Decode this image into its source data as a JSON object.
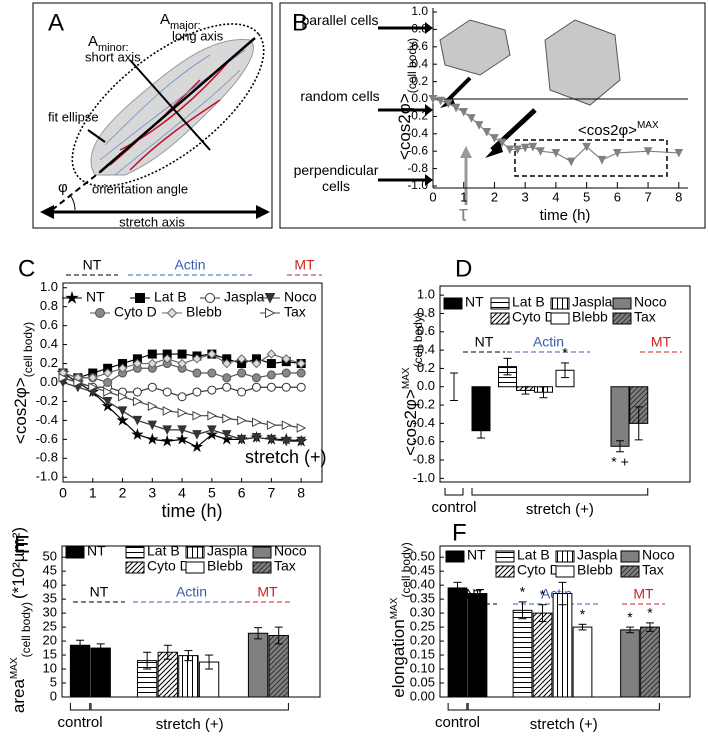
{
  "diagram": {
    "panel": "A",
    "major_axis": {
      "symbol": "A",
      "subscript": "major:",
      "text": "long axis"
    },
    "minor_axis": {
      "symbol": "A",
      "subscript": "minor:",
      "text": "short axis"
    },
    "ellipse_label": "fit ellipse",
    "angle_symbol": "φ",
    "angle_label": "orientation angle",
    "stretch_label": "stretch axis"
  },
  "chart_data": [
    {
      "panel": "B",
      "type": "line",
      "ylabel": "<cos2φ>",
      "ylabel_sub": "(cell body)",
      "xlabel": "time (h)",
      "x": [
        0,
        0.25,
        0.5,
        0.75,
        1,
        1.25,
        1.5,
        1.75,
        2,
        2.25,
        2.5,
        2.75,
        3,
        3.25,
        3.5,
        4,
        4.5,
        5,
        5.5,
        6,
        7,
        8
      ],
      "series": [
        {
          "color": "#808080",
          "marker": "triangle-down",
          "marker_fill": "#808080",
          "values": [
            0,
            -0.02,
            -0.05,
            -0.1,
            -0.15,
            -0.22,
            -0.3,
            -0.38,
            -0.45,
            -0.5,
            -0.58,
            -0.58,
            -0.56,
            -0.55,
            -0.6,
            -0.62,
            -0.72,
            -0.55,
            -0.7,
            -0.62,
            -0.6,
            -0.62
          ]
        }
      ],
      "xlim": [
        0,
        8.3
      ],
      "xticks": [
        0,
        1,
        2,
        3,
        4,
        5,
        6,
        7,
        8
      ],
      "ylim": [
        -1,
        1
      ],
      "yticks": [
        {
          "value": 1,
          "label": "1.0"
        },
        0.8,
        0.6,
        0.4,
        0.2,
        {
          "value": 0,
          "label": "0.0"
        },
        -0.2,
        -0.4,
        -0.6,
        -0.8,
        {
          "value": -1,
          "label": "-1.0"
        }
      ],
      "annotations": [
        "parallel cells",
        "random cells",
        "perpendicular cells"
      ],
      "max_label": {
        "text": "<cos2φ>",
        "sup": "MAX"
      },
      "tau_label": "τ"
    },
    {
      "panel": "C",
      "type": "line",
      "ylabel": "<cos2φ>",
      "ylabel_sub": "(cell body)",
      "xlabel": "time (h)",
      "x": [
        0,
        0.5,
        1,
        1.5,
        2,
        2.5,
        3,
        3.5,
        4,
        4.5,
        5,
        5.5,
        6,
        6.5,
        7,
        7.5,
        8
      ],
      "series": [
        {
          "name": "NT",
          "color": "#000000",
          "marker": "star",
          "marker_fill": "#000000",
          "values": [
            0.1,
            0.0,
            -0.1,
            -0.25,
            -0.4,
            -0.55,
            -0.6,
            -0.62,
            -0.6,
            -0.68,
            -0.55,
            -0.6,
            -0.6,
            -0.58,
            -0.6,
            -0.6,
            -0.62
          ]
        },
        {
          "name": "Lat B",
          "color": "#000000",
          "marker": "square",
          "marker_fill": "#000000",
          "values": [
            0.1,
            0.05,
            0.1,
            0.15,
            0.2,
            0.25,
            0.3,
            0.3,
            0.3,
            0.28,
            0.3,
            0.25,
            0.2,
            0.25,
            0.2,
            0.22,
            0.2
          ]
        },
        {
          "name": "Jaspla",
          "color": "#333333",
          "marker": "circle",
          "marker_fill": "#ffffff",
          "values": [
            0.05,
            0,
            -0.05,
            -0.05,
            -0.1,
            -0.1,
            -0.05,
            -0.1,
            -0.15,
            -0.1,
            -0.08,
            -0.05,
            -0.1,
            -0.05,
            -0.05,
            -0.05,
            -0.05
          ]
        },
        {
          "name": "Noco",
          "color": "#333333",
          "marker": "triangle-down",
          "marker_fill": "#333333",
          "values": [
            0.0,
            -0.05,
            -0.1,
            -0.2,
            -0.3,
            -0.4,
            -0.45,
            -0.5,
            -0.5,
            -0.55,
            -0.5,
            -0.55,
            -0.6,
            -0.58,
            -0.6,
            -0.62,
            -0.62
          ]
        },
        {
          "name": "Cyto D",
          "color": "#555555",
          "marker": "circle",
          "marker_fill": "#888888",
          "values": [
            0.1,
            0.05,
            0.05,
            0,
            0.1,
            0.15,
            0.15,
            0.2,
            0.15,
            0.1,
            0.1,
            0.05,
            0.1,
            0.05,
            0.08,
            0.1,
            0.1
          ]
        },
        {
          "name": "Blebb",
          "color": "#666666",
          "marker": "diamond",
          "marker_fill": "#dddddd",
          "values": [
            0.1,
            0.05,
            0.05,
            0.1,
            0.15,
            0.2,
            0.2,
            0.25,
            0.2,
            0.25,
            0.3,
            0.2,
            0.25,
            0.2,
            0.3,
            0.25,
            0.2
          ]
        },
        {
          "name": "Tax",
          "color": "#444444",
          "marker": "triangle-right",
          "marker_fill": "#ffffff",
          "values": [
            0.05,
            0,
            -0.05,
            -0.1,
            -0.15,
            -0.2,
            -0.25,
            -0.3,
            -0.32,
            -0.35,
            -0.35,
            -0.38,
            -0.4,
            -0.42,
            -0.45,
            -0.45,
            -0.48
          ]
        }
      ],
      "xlim": [
        0,
        8.7
      ],
      "xticks": [
        0,
        1,
        2,
        3,
        4,
        5,
        6,
        7,
        8
      ],
      "ylim": [
        -1.05,
        1.05
      ],
      "yticks": [
        {
          "value": 1,
          "label": "1.0"
        },
        0.8,
        0.6,
        0.4,
        0.2,
        {
          "value": 0,
          "label": "0.0"
        },
        -0.2,
        -0.4,
        -0.6,
        -0.8,
        {
          "value": -1,
          "label": "-1.0"
        }
      ],
      "groups": [
        {
          "label": "NT",
          "color": "#000000"
        },
        {
          "label": "Actin",
          "color": "#3a5bb0"
        },
        {
          "label": "MT",
          "color": "#d02020"
        }
      ],
      "annotation": "stretch (+)"
    },
    {
      "panel": "D",
      "type": "bar",
      "ylabel": "<cos2φ>",
      "ylabel_sup": "MAX",
      "ylabel_sub": "(cell body)",
      "series": [
        {
          "name": "NT",
          "color": "#000000",
          "pattern": "solid",
          "values": [
            0,
            -0.48
          ],
          "errors": [
            0.15,
            0.08
          ]
        },
        {
          "name": "Lat B",
          "color": "#ffffff",
          "pattern": "horizontal",
          "values": [
            0.22
          ],
          "errors": [
            0.09
          ]
        },
        {
          "name": "Cyto D",
          "color": "#ffffff",
          "pattern": "diagonal",
          "values": [
            -0.04
          ],
          "errors": [
            0.04
          ]
        },
        {
          "name": "Jaspla",
          "color": "#ffffff",
          "pattern": "vertical",
          "values": [
            -0.06
          ],
          "errors": [
            0.06
          ]
        },
        {
          "name": "Blebb",
          "color": "#ffffff",
          "pattern": "solid",
          "values": [
            0.18
          ],
          "errors": [
            0.08
          ],
          "annotation": "*"
        },
        {
          "name": "Noco",
          "color": "#808080",
          "pattern": "solid",
          "values": [
            -0.65
          ],
          "errors": [
            0.06
          ],
          "annotation": "* +"
        },
        {
          "name": "Tax",
          "color": "#808080",
          "pattern": "diagonal",
          "values": [
            -0.4
          ],
          "errors": [
            0.18
          ]
        }
      ],
      "ylim": [
        -1.04,
        1.1
      ],
      "yticks": [
        {
          "value": 1,
          "label": "1.0"
        },
        0.8,
        0.6,
        0.4,
        0.2,
        {
          "value": 0,
          "label": "0.0"
        },
        -0.2,
        -0.4,
        -0.6,
        -0.8,
        {
          "value": -1,
          "label": "-1.0"
        }
      ],
      "groups": [
        {
          "label": "NT",
          "color": "#000000"
        },
        {
          "label": "Actin",
          "color": "#3a5bb0"
        },
        {
          "label": "MT",
          "color": "#d02020"
        }
      ],
      "xgroups": [
        "control",
        "stretch (+)"
      ]
    },
    {
      "panel": "E",
      "type": "bar",
      "ylabel": "area",
      "ylabel_sup": "MAX",
      "ylabel_sub": "(cell body)",
      "yunit": "(*10²µm²)",
      "series": [
        {
          "name": "NT",
          "color": "#000000",
          "pattern": "solid",
          "values": [
            18.5,
            17.5
          ],
          "errors": [
            1.8,
            1.5
          ]
        },
        {
          "name": "Lat B",
          "color": "#ffffff",
          "pattern": "horizontal",
          "values": [
            13
          ],
          "errors": [
            3
          ]
        },
        {
          "name": "Cyto D",
          "color": "#ffffff",
          "pattern": "diagonal",
          "values": [
            16
          ],
          "errors": [
            2.5
          ]
        },
        {
          "name": "Jaspla",
          "color": "#ffffff",
          "pattern": "vertical",
          "values": [
            14.8
          ],
          "errors": [
            1.8
          ]
        },
        {
          "name": "Blebb",
          "color": "#ffffff",
          "pattern": "solid",
          "values": [
            12.5
          ],
          "errors": [
            2.5
          ]
        },
        {
          "name": "Noco",
          "color": "#808080",
          "pattern": "solid",
          "values": [
            22.8
          ],
          "errors": [
            2
          ]
        },
        {
          "name": "Tax",
          "color": "#808080",
          "pattern": "diagonal",
          "values": [
            22
          ],
          "errors": [
            3
          ]
        }
      ],
      "ylim": [
        0,
        54
      ],
      "yticks": [
        0,
        5,
        10,
        15,
        20,
        25,
        30,
        35,
        40,
        45,
        50
      ],
      "groups": [
        {
          "label": "NT",
          "color": "#000000"
        },
        {
          "label": "Actin",
          "color": "#3a5bb0"
        },
        {
          "label": "MT",
          "color": "#d02020"
        }
      ],
      "xgroups": [
        "control",
        "stretch (+)"
      ]
    },
    {
      "panel": "F",
      "type": "bar",
      "ylabel": "elongation",
      "ylabel_sup": "MAX",
      "ylabel_sub": "(cell body)",
      "series": [
        {
          "name": "NT",
          "color": "#000000",
          "pattern": "solid",
          "values": [
            0.39,
            0.37
          ],
          "errors": [
            0.02,
            0.01
          ]
        },
        {
          "name": "Lat B",
          "color": "#ffffff",
          "pattern": "horizontal",
          "values": [
            0.31
          ],
          "errors": [
            0.03
          ],
          "annotation": "*"
        },
        {
          "name": "Cyto D",
          "color": "#ffffff",
          "pattern": "diagonal",
          "values": [
            0.3
          ],
          "errors": [
            0.03
          ],
          "annotation": "*"
        },
        {
          "name": "Jaspla",
          "color": "#ffffff",
          "pattern": "vertical",
          "values": [
            0.37
          ],
          "errors": [
            0.04
          ]
        },
        {
          "name": "Blebb",
          "color": "#ffffff",
          "pattern": "solid",
          "values": [
            0.25
          ],
          "errors": [
            0.01
          ],
          "annotation": "*"
        },
        {
          "name": "Noco",
          "color": "#808080",
          "pattern": "solid",
          "values": [
            0.24
          ],
          "errors": [
            0.01
          ],
          "annotation": "*"
        },
        {
          "name": "Tax",
          "color": "#808080",
          "pattern": "diagonal",
          "values": [
            0.25
          ],
          "errors": [
            0.015
          ],
          "annotation": "*"
        }
      ],
      "ylim": [
        0,
        0.54
      ],
      "yticks": [
        {
          "value": 0,
          "label": "0.00"
        },
        {
          "value": 0.05,
          "label": "0.05"
        },
        {
          "value": 0.1,
          "label": "0.10"
        },
        {
          "value": 0.15,
          "label": "0.15"
        },
        {
          "value": 0.2,
          "label": "0.20"
        },
        {
          "value": 0.25,
          "label": "0.25"
        },
        {
          "value": 0.3,
          "label": "0.30"
        },
        {
          "value": 0.35,
          "label": "0.35"
        },
        {
          "value": 0.4,
          "label": "0.40"
        },
        {
          "value": 0.45,
          "label": "0.45"
        },
        {
          "value": 0.5,
          "label": "0.50"
        }
      ],
      "groups": [
        {
          "label": "NT",
          "color": "#000000"
        },
        {
          "label": "Actin",
          "color": "#3a5bb0"
        },
        {
          "label": "MT",
          "color": "#d02020"
        }
      ],
      "xgroups": [
        "control",
        "stretch (+)"
      ]
    }
  ]
}
